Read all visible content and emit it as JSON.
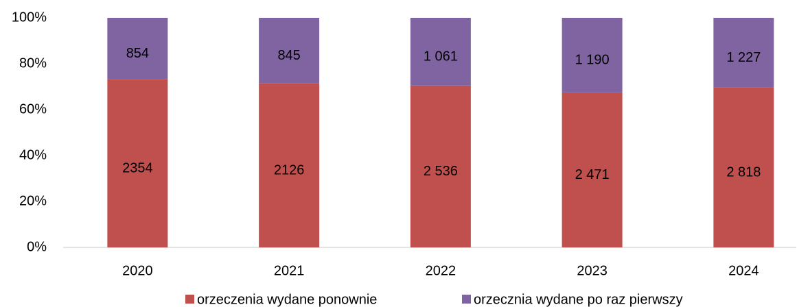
{
  "chart_data": {
    "type": "bar",
    "stacking": "percent",
    "categories": [
      "2020",
      "2021",
      "2022",
      "2023",
      "2024"
    ],
    "series": [
      {
        "name": "orzeczenia wydane ponownie",
        "color": "#c0504d",
        "values": [
          2354,
          2126,
          2536,
          2471,
          2818
        ],
        "value_labels": [
          "2354",
          "2126",
          "2 536",
          "2 471",
          "2 818"
        ]
      },
      {
        "name": "orzecznia wydane po raz pierwszy",
        "color": "#8064a2",
        "values": [
          854,
          845,
          1061,
          1190,
          1227
        ],
        "value_labels": [
          "854",
          "845",
          "1 061",
          "1 190",
          "1 227"
        ]
      }
    ],
    "ylim": [
      0,
      100
    ],
    "yticks": [
      {
        "value": 0,
        "label": "0%"
      },
      {
        "value": 20,
        "label": "20%"
      },
      {
        "value": 40,
        "label": "40%"
      },
      {
        "value": 60,
        "label": "60%"
      },
      {
        "value": 80,
        "label": "80%"
      },
      {
        "value": 100,
        "label": "100%"
      }
    ],
    "legend": "bottom"
  }
}
